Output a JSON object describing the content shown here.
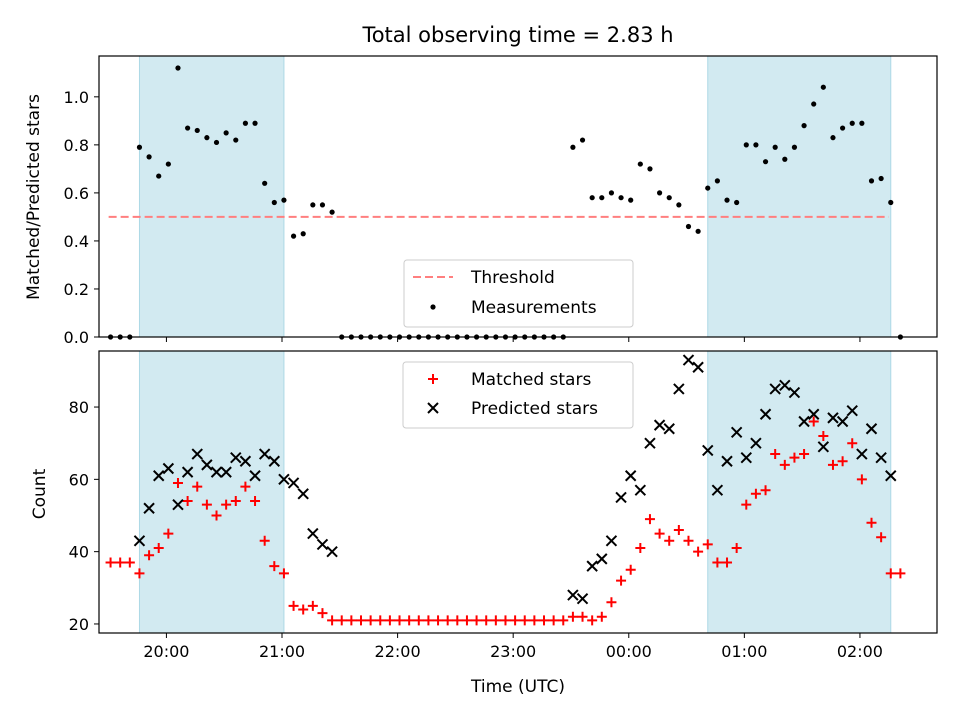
{
  "figure": {
    "title": "Total observing time = 2.83 h"
  },
  "chart_data": [
    {
      "type": "scatter",
      "ylabel": "Matched/Predicted stars",
      "ylim": [
        0,
        1.17
      ],
      "yticks": [
        0.0,
        0.2,
        0.4,
        0.6,
        0.8,
        1.0
      ],
      "ytick_labels": [
        "0.0",
        "0.2",
        "0.4",
        "0.6",
        "0.8",
        "1.0"
      ],
      "threshold": {
        "name": "Threshold",
        "value": 0.5,
        "x_start": "19:30",
        "x_end": "02:15",
        "color": "#ff7f7f"
      },
      "series": [
        {
          "name": "Measurements",
          "color": "#000000",
          "points": [
            [
              "19:31",
              0
            ],
            [
              "19:36",
              0
            ],
            [
              "19:41",
              0
            ],
            [
              "19:46",
              0.79
            ],
            [
              "19:51",
              0.75
            ],
            [
              "19:56",
              0.67
            ],
            [
              "20:01",
              0.72
            ],
            [
              "20:06",
              1.12
            ],
            [
              "20:11",
              0.87
            ],
            [
              "20:16",
              0.86
            ],
            [
              "20:21",
              0.83
            ],
            [
              "20:26",
              0.81
            ],
            [
              "20:31",
              0.85
            ],
            [
              "20:36",
              0.82
            ],
            [
              "20:41",
              0.89
            ],
            [
              "20:46",
              0.89
            ],
            [
              "20:51",
              0.64
            ],
            [
              "20:56",
              0.56
            ],
            [
              "21:01",
              0.57
            ],
            [
              "21:06",
              0.42
            ],
            [
              "21:11",
              0.43
            ],
            [
              "21:16",
              0.55
            ],
            [
              "21:21",
              0.55
            ],
            [
              "21:26",
              0.52
            ],
            [
              "21:31",
              0
            ],
            [
              "21:36",
              0
            ],
            [
              "21:41",
              0
            ],
            [
              "21:46",
              0
            ],
            [
              "21:51",
              0
            ],
            [
              "21:56",
              0
            ],
            [
              "22:01",
              0
            ],
            [
              "22:06",
              0
            ],
            [
              "22:11",
              0
            ],
            [
              "22:16",
              0
            ],
            [
              "22:21",
              0
            ],
            [
              "22:26",
              0
            ],
            [
              "22:31",
              0
            ],
            [
              "22:36",
              0
            ],
            [
              "22:41",
              0
            ],
            [
              "22:46",
              0
            ],
            [
              "22:51",
              0
            ],
            [
              "22:56",
              0
            ],
            [
              "23:01",
              0
            ],
            [
              "23:06",
              0
            ],
            [
              "23:11",
              0
            ],
            [
              "23:16",
              0
            ],
            [
              "23:21",
              0
            ],
            [
              "23:26",
              0
            ],
            [
              "23:31",
              0.79
            ],
            [
              "23:36",
              0.82
            ],
            [
              "23:41",
              0.58
            ],
            [
              "23:46",
              0.58
            ],
            [
              "23:51",
              0.6
            ],
            [
              "23:56",
              0.58
            ],
            [
              "00:01",
              0.57
            ],
            [
              "00:06",
              0.72
            ],
            [
              "00:11",
              0.7
            ],
            [
              "00:16",
              0.6
            ],
            [
              "00:21",
              0.58
            ],
            [
              "00:26",
              0.55
            ],
            [
              "00:31",
              0.46
            ],
            [
              "00:36",
              0.44
            ],
            [
              "00:41",
              0.62
            ],
            [
              "00:46",
              0.65
            ],
            [
              "00:51",
              0.57
            ],
            [
              "00:56",
              0.56
            ],
            [
              "01:01",
              0.8
            ],
            [
              "01:06",
              0.8
            ],
            [
              "01:11",
              0.73
            ],
            [
              "01:16",
              0.79
            ],
            [
              "01:21",
              0.74
            ],
            [
              "01:26",
              0.79
            ],
            [
              "01:31",
              0.88
            ],
            [
              "01:36",
              0.97
            ],
            [
              "01:41",
              1.04
            ],
            [
              "01:46",
              0.83
            ],
            [
              "01:51",
              0.87
            ],
            [
              "01:56",
              0.89
            ],
            [
              "02:01",
              0.89
            ],
            [
              "02:06",
              0.65
            ],
            [
              "02:11",
              0.66
            ],
            [
              "02:16",
              0.56
            ],
            [
              "02:21",
              0
            ]
          ]
        }
      ],
      "shaded_regions": [
        [
          "19:46",
          "21:01"
        ],
        [
          "00:41",
          "02:16"
        ]
      ],
      "shade_color": "#add8e6",
      "legend": {
        "placement": "lower-center",
        "entries": [
          "Threshold",
          "Measurements"
        ]
      }
    },
    {
      "type": "scatter",
      "xlabel": "Time (UTC)",
      "ylabel": "Count",
      "ylim": [
        17.5,
        95.5
      ],
      "yticks": [
        20,
        40,
        60,
        80
      ],
      "ytick_labels": [
        "20",
        "40",
        "60",
        "80"
      ],
      "xticks": [
        "20:00",
        "21:00",
        "22:00",
        "23:00",
        "00:00",
        "01:00",
        "02:00"
      ],
      "xtick_labels": [
        "20:00",
        "21:00",
        "22:00",
        "23:00",
        "00:00",
        "01:00",
        "02:00"
      ],
      "xlim": [
        "19:25",
        "02:40"
      ],
      "series": [
        {
          "name": "Matched stars",
          "marker": "plus",
          "color": "#ff0000",
          "points": [
            [
              "19:31",
              37
            ],
            [
              "19:36",
              37
            ],
            [
              "19:41",
              37
            ],
            [
              "19:46",
              34
            ],
            [
              "19:51",
              39
            ],
            [
              "19:56",
              41
            ],
            [
              "20:01",
              45
            ],
            [
              "20:06",
              59
            ],
            [
              "20:11",
              54
            ],
            [
              "20:16",
              58
            ],
            [
              "20:21",
              53
            ],
            [
              "20:26",
              50
            ],
            [
              "20:31",
              53
            ],
            [
              "20:36",
              54
            ],
            [
              "20:41",
              58
            ],
            [
              "20:46",
              54
            ],
            [
              "20:51",
              43
            ],
            [
              "20:56",
              36
            ],
            [
              "21:01",
              34
            ],
            [
              "21:06",
              25
            ],
            [
              "21:11",
              24
            ],
            [
              "21:16",
              25
            ],
            [
              "21:21",
              23
            ],
            [
              "21:26",
              21
            ],
            [
              "21:31",
              21
            ],
            [
              "21:36",
              21
            ],
            [
              "21:41",
              21
            ],
            [
              "21:46",
              21
            ],
            [
              "21:51",
              21
            ],
            [
              "21:56",
              21
            ],
            [
              "22:01",
              21
            ],
            [
              "22:06",
              21
            ],
            [
              "22:11",
              21
            ],
            [
              "22:16",
              21
            ],
            [
              "22:21",
              21
            ],
            [
              "22:26",
              21
            ],
            [
              "22:31",
              21
            ],
            [
              "22:36",
              21
            ],
            [
              "22:41",
              21
            ],
            [
              "22:46",
              21
            ],
            [
              "22:51",
              21
            ],
            [
              "22:56",
              21
            ],
            [
              "23:01",
              21
            ],
            [
              "23:06",
              21
            ],
            [
              "23:11",
              21
            ],
            [
              "23:16",
              21
            ],
            [
              "23:21",
              21
            ],
            [
              "23:26",
              21
            ],
            [
              "23:31",
              22
            ],
            [
              "23:36",
              22
            ],
            [
              "23:41",
              21
            ],
            [
              "23:46",
              22
            ],
            [
              "23:51",
              26
            ],
            [
              "23:56",
              32
            ],
            [
              "00:01",
              35
            ],
            [
              "00:06",
              41
            ],
            [
              "00:11",
              49
            ],
            [
              "00:16",
              45
            ],
            [
              "00:21",
              43
            ],
            [
              "00:26",
              46
            ],
            [
              "00:31",
              43
            ],
            [
              "00:36",
              40
            ],
            [
              "00:41",
              42
            ],
            [
              "00:46",
              37
            ],
            [
              "00:51",
              37
            ],
            [
              "00:56",
              41
            ],
            [
              "01:01",
              53
            ],
            [
              "01:06",
              56
            ],
            [
              "01:11",
              57
            ],
            [
              "01:16",
              67
            ],
            [
              "01:21",
              64
            ],
            [
              "01:26",
              66
            ],
            [
              "01:31",
              67
            ],
            [
              "01:36",
              76
            ],
            [
              "01:41",
              72
            ],
            [
              "01:46",
              64
            ],
            [
              "01:51",
              65
            ],
            [
              "01:56",
              70
            ],
            [
              "02:01",
              60
            ],
            [
              "02:06",
              48
            ],
            [
              "02:11",
              44
            ],
            [
              "02:16",
              34
            ],
            [
              "02:21",
              34
            ]
          ]
        },
        {
          "name": "Predicted stars",
          "marker": "x",
          "color": "#000000",
          "points": [
            [
              "19:46",
              43
            ],
            [
              "19:51",
              52
            ],
            [
              "19:56",
              61
            ],
            [
              "20:01",
              63
            ],
            [
              "20:06",
              53
            ],
            [
              "20:11",
              62
            ],
            [
              "20:16",
              67
            ],
            [
              "20:21",
              64
            ],
            [
              "20:26",
              62
            ],
            [
              "20:31",
              62
            ],
            [
              "20:36",
              66
            ],
            [
              "20:41",
              65
            ],
            [
              "20:46",
              61
            ],
            [
              "20:51",
              67
            ],
            [
              "20:56",
              65
            ],
            [
              "21:01",
              60
            ],
            [
              "21:06",
              59
            ],
            [
              "21:11",
              56
            ],
            [
              "21:16",
              45
            ],
            [
              "21:21",
              42
            ],
            [
              "21:26",
              40
            ],
            [
              "23:31",
              28
            ],
            [
              "23:36",
              27
            ],
            [
              "23:41",
              36
            ],
            [
              "23:46",
              38
            ],
            [
              "23:51",
              43
            ],
            [
              "23:56",
              55
            ],
            [
              "00:01",
              61
            ],
            [
              "00:06",
              57
            ],
            [
              "00:11",
              70
            ],
            [
              "00:16",
              75
            ],
            [
              "00:21",
              74
            ],
            [
              "00:26",
              85
            ],
            [
              "00:31",
              93
            ],
            [
              "00:36",
              91
            ],
            [
              "00:41",
              68
            ],
            [
              "00:46",
              57
            ],
            [
              "00:51",
              65
            ],
            [
              "00:56",
              73
            ],
            [
              "01:01",
              66
            ],
            [
              "01:06",
              70
            ],
            [
              "01:11",
              78
            ],
            [
              "01:16",
              85
            ],
            [
              "01:21",
              86
            ],
            [
              "01:26",
              84
            ],
            [
              "01:31",
              76
            ],
            [
              "01:36",
              78
            ],
            [
              "01:41",
              69
            ],
            [
              "01:46",
              77
            ],
            [
              "01:51",
              76
            ],
            [
              "01:56",
              79
            ],
            [
              "02:01",
              67
            ],
            [
              "02:06",
              74
            ],
            [
              "02:11",
              66
            ],
            [
              "02:16",
              61
            ]
          ]
        }
      ],
      "shaded_regions": [
        [
          "19:46",
          "21:01"
        ],
        [
          "00:41",
          "02:16"
        ]
      ],
      "shade_color": "#add8e6",
      "legend": {
        "placement": "upper-center",
        "entries": [
          "Matched stars",
          "Predicted stars"
        ]
      }
    }
  ]
}
